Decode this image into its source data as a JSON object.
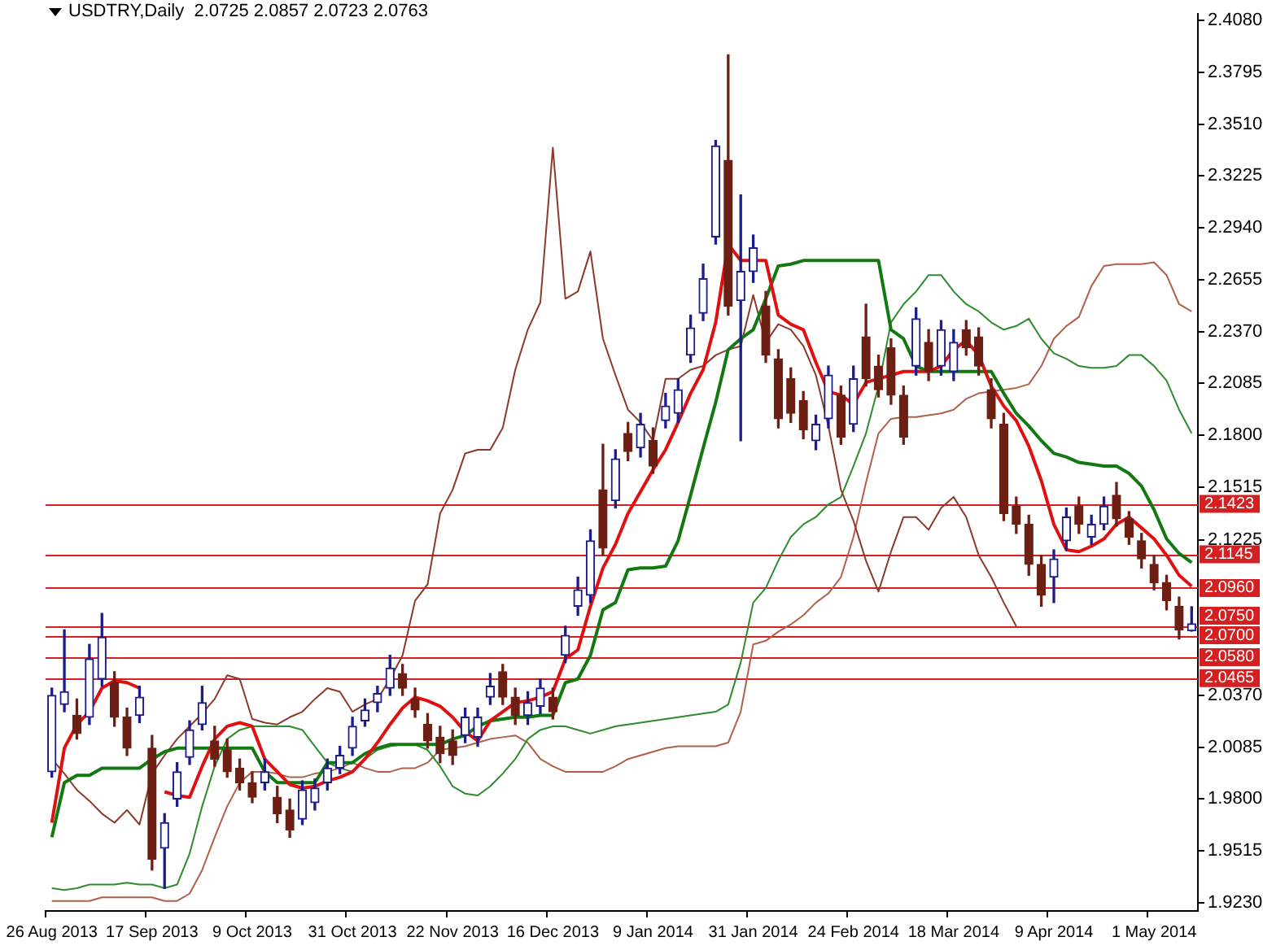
{
  "chart_data": {
    "type": "candlestick",
    "title": "USDTRY,Daily  2.0725 2.0857 2.0723 2.0763",
    "categories": [
      "26 Aug 2013",
      null,
      null,
      null,
      null,
      null,
      null,
      null,
      "17 Sep 2013",
      null,
      null,
      null,
      null,
      null,
      null,
      null,
      "9 Oct 2013",
      null,
      null,
      null,
      null,
      null,
      null,
      null,
      "31 Oct 2013",
      null,
      null,
      null,
      null,
      null,
      null,
      null,
      "22 Nov 2013",
      null,
      null,
      null,
      null,
      null,
      null,
      null,
      "16 Dec 2013",
      null,
      null,
      null,
      null,
      null,
      null,
      null,
      "9 Jan 2014",
      null,
      null,
      null,
      null,
      null,
      null,
      null,
      "31 Jan 2014",
      null,
      null,
      null,
      null,
      null,
      null,
      null,
      "24 Feb 2014",
      null,
      null,
      null,
      null,
      null,
      null,
      null,
      "18 Mar 2014",
      null,
      null,
      null,
      null,
      null,
      null,
      null,
      "9 Apr 2014",
      null,
      null,
      null,
      null,
      null,
      null,
      null,
      "1 May 2014",
      null,
      null,
      null
    ],
    "ohlc": [
      [
        1.995,
        2.041,
        1.992,
        2.037
      ],
      [
        2.032,
        2.073,
        2.028,
        2.039
      ],
      [
        2.026,
        2.035,
        2.013,
        2.016
      ],
      [
        2.025,
        2.065,
        2.021,
        2.057
      ],
      [
        2.046,
        2.082,
        2.042,
        2.069
      ],
      [
        2.044,
        2.05,
        2.02,
        2.025
      ],
      [
        2.025,
        2.03,
        2.004,
        2.008
      ],
      [
        2.026,
        2.042,
        2.022,
        2.036
      ],
      [
        2.008,
        2.015,
        1.941,
        1.947
      ],
      [
        1.953,
        1.972,
        1.931,
        1.967
      ],
      [
        1.98,
        2.0,
        1.976,
        1.995
      ],
      [
        2.003,
        2.023,
        1.999,
        2.018
      ],
      [
        2.021,
        2.042,
        2.018,
        2.033
      ],
      [
        2.012,
        2.02,
        1.998,
        2.002
      ],
      [
        2.007,
        2.013,
        1.992,
        1.995
      ],
      [
        1.997,
        2.002,
        1.985,
        1.989
      ],
      [
        1.989,
        1.995,
        1.978,
        1.981
      ],
      [
        1.989,
        2.002,
        1.985,
        1.995
      ],
      [
        1.981,
        1.987,
        1.967,
        1.972
      ],
      [
        1.974,
        1.98,
        1.959,
        1.963
      ],
      [
        1.969,
        1.99,
        1.966,
        1.985
      ],
      [
        1.978,
        1.991,
        1.974,
        1.986
      ],
      [
        1.989,
        2.002,
        1.985,
        1.997
      ],
      [
        1.997,
        2.009,
        1.994,
        2.004
      ],
      [
        2.008,
        2.025,
        2.004,
        2.02
      ],
      [
        2.023,
        2.035,
        2.02,
        2.029
      ],
      [
        2.033,
        2.042,
        2.028,
        2.038
      ],
      [
        2.041,
        2.059,
        2.037,
        2.052
      ],
      [
        2.049,
        2.054,
        2.037,
        2.041
      ],
      [
        2.035,
        2.041,
        2.025,
        2.029
      ],
      [
        2.021,
        2.027,
        2.008,
        2.012
      ],
      [
        2.014,
        2.02,
        2.0,
        2.005
      ],
      [
        2.012,
        2.018,
        1.999,
        2.004
      ],
      [
        2.015,
        2.03,
        2.011,
        2.025
      ],
      [
        2.014,
        2.03,
        2.009,
        2.025
      ],
      [
        2.036,
        2.049,
        2.032,
        2.042
      ],
      [
        2.05,
        2.054,
        2.032,
        2.036
      ],
      [
        2.036,
        2.041,
        2.021,
        2.026
      ],
      [
        2.026,
        2.039,
        2.021,
        2.033
      ],
      [
        2.031,
        2.046,
        2.027,
        2.041
      ],
      [
        2.036,
        2.041,
        2.024,
        2.028
      ],
      [
        2.059,
        2.075,
        2.055,
        2.07
      ],
      [
        2.086,
        2.102,
        2.081,
        2.095
      ],
      [
        2.092,
        2.128,
        2.088,
        2.122
      ],
      [
        2.15,
        2.175,
        2.114,
        2.118
      ],
      [
        2.144,
        2.172,
        2.14,
        2.167
      ],
      [
        2.181,
        2.187,
        2.166,
        2.171
      ],
      [
        2.173,
        2.192,
        2.168,
        2.186
      ],
      [
        2.177,
        2.184,
        2.159,
        2.163
      ],
      [
        2.188,
        2.203,
        2.184,
        2.196
      ],
      [
        2.192,
        2.211,
        2.187,
        2.205
      ],
      [
        2.224,
        2.246,
        2.22,
        2.239
      ],
      [
        2.247,
        2.274,
        2.243,
        2.266
      ],
      [
        2.289,
        2.342,
        2.285,
        2.339
      ],
      [
        2.331,
        2.389,
        2.246,
        2.251
      ],
      [
        2.254,
        2.312,
        2.177,
        2.27
      ],
      [
        2.27,
        2.29,
        2.264,
        2.283
      ],
      [
        2.251,
        2.259,
        2.22,
        2.224
      ],
      [
        2.222,
        2.227,
        2.184,
        2.189
      ],
      [
        2.211,
        2.217,
        2.187,
        2.192
      ],
      [
        2.199,
        2.204,
        2.178,
        2.183
      ],
      [
        2.177,
        2.191,
        2.172,
        2.186
      ],
      [
        2.189,
        2.218,
        2.184,
        2.213
      ],
      [
        2.202,
        2.207,
        2.175,
        2.179
      ],
      [
        2.186,
        2.218,
        2.182,
        2.211
      ],
      [
        2.234,
        2.252,
        2.207,
        2.211
      ],
      [
        2.218,
        2.224,
        2.201,
        2.205
      ],
      [
        2.228,
        2.233,
        2.197,
        2.202
      ],
      [
        2.202,
        2.207,
        2.175,
        2.179
      ],
      [
        2.218,
        2.25,
        2.213,
        2.244
      ],
      [
        2.231,
        2.238,
        2.21,
        2.215
      ],
      [
        2.218,
        2.243,
        2.213,
        2.238
      ],
      [
        2.215,
        2.238,
        2.21,
        2.231
      ],
      [
        2.238,
        2.243,
        2.224,
        2.228
      ],
      [
        2.234,
        2.239,
        2.213,
        2.218
      ],
      [
        2.205,
        2.211,
        2.184,
        2.189
      ],
      [
        2.186,
        2.192,
        2.133,
        2.137
      ],
      [
        2.141,
        2.146,
        2.126,
        2.131
      ],
      [
        2.131,
        2.136,
        2.103,
        2.109
      ],
      [
        2.109,
        2.114,
        2.086,
        2.092
      ],
      [
        2.102,
        2.117,
        2.088,
        2.112
      ],
      [
        2.122,
        2.14,
        2.117,
        2.135
      ],
      [
        2.141,
        2.146,
        2.126,
        2.131
      ],
      [
        2.124,
        2.136,
        2.12,
        2.131
      ],
      [
        2.131,
        2.146,
        2.128,
        2.141
      ],
      [
        2.147,
        2.154,
        2.13,
        2.134
      ],
      [
        2.134,
        2.138,
        2.12,
        2.124
      ],
      [
        2.122,
        2.126,
        2.107,
        2.112
      ],
      [
        2.109,
        2.114,
        2.095,
        2.099
      ],
      [
        2.099,
        2.103,
        2.084,
        2.089
      ],
      [
        2.086,
        2.091,
        2.068,
        2.073
      ],
      [
        2.0725,
        2.0857,
        2.0723,
        2.0763
      ]
    ],
    "colors": [
      "#1c1c8c",
      "#1c1c8c",
      "#6e1f14",
      "#1c1c8c",
      "#1c1c8c",
      "#6e1f14",
      "#6e1f14",
      "#1c1c8c",
      "#6e1f14",
      "#1c1c8c",
      "#1c1c8c",
      "#1c1c8c",
      "#1c1c8c",
      "#6e1f14",
      "#6e1f14",
      "#6e1f14",
      "#6e1f14",
      "#1c1c8c",
      "#6e1f14",
      "#6e1f14",
      "#1c1c8c",
      "#1c1c8c",
      "#1c1c8c",
      "#1c1c8c",
      "#1c1c8c",
      "#1c1c8c",
      "#1c1c8c",
      "#1c1c8c",
      "#6e1f14",
      "#6e1f14",
      "#6e1f14",
      "#6e1f14",
      "#6e1f14",
      "#1c1c8c",
      "#1c1c8c",
      "#1c1c8c",
      "#6e1f14",
      "#6e1f14",
      "#1c1c8c",
      "#1c1c8c",
      "#6e1f14",
      "#1c1c8c",
      "#1c1c8c",
      "#1c1c8c",
      "#6e1f14",
      "#1c1c8c",
      "#6e1f14",
      "#1c1c8c",
      "#6e1f14",
      "#1c1c8c",
      "#1c1c8c",
      "#1c1c8c",
      "#1c1c8c",
      "#1c1c8c",
      "#6e1f14",
      "#1c1c8c",
      "#1c1c8c",
      "#6e1f14",
      "#6e1f14",
      "#6e1f14",
      "#6e1f14",
      "#1c1c8c",
      "#1c1c8c",
      "#6e1f14",
      "#1c1c8c",
      "#6e1f14",
      "#6e1f14",
      "#6e1f14",
      "#6e1f14",
      "#1c1c8c",
      "#6e1f14",
      "#1c1c8c",
      "#1c1c8c",
      "#6e1f14",
      "#6e1f14",
      "#6e1f14",
      "#6e1f14",
      "#6e1f14",
      "#6e1f14",
      "#6e1f14",
      "#1c1c8c",
      "#1c1c8c",
      "#6e1f14",
      "#1c1c8c",
      "#1c1c8c",
      "#6e1f14",
      "#6e1f14",
      "#6e1f14",
      "#6e1f14",
      "#6e1f14",
      "#6e1f14",
      "#1c1c8c"
    ],
    "series": [
      {
        "type": "line",
        "color": "#e01010",
        "values": [
          1.967,
          2.008,
          2.021,
          2.028,
          2.041,
          2.045,
          2.044,
          2.041,
          null,
          1.984,
          1.982,
          1.981,
          1.998,
          2.013,
          2.02,
          2.022,
          2.02,
          2.002,
          1.995,
          1.988,
          1.986,
          1.987,
          1.99,
          1.992,
          1.995,
          2.002,
          2.011,
          2.021,
          2.03,
          2.036,
          2.034,
          2.031,
          2.025,
          2.017,
          2.012,
          2.023,
          2.028,
          2.033,
          2.034,
          2.036,
          2.039,
          2.057,
          2.062,
          2.086,
          2.107,
          2.12,
          2.137,
          2.149,
          2.161,
          2.172,
          2.187,
          2.203,
          2.216,
          2.242,
          2.285,
          2.276,
          2.276,
          2.276,
          2.246,
          2.241,
          2.238,
          2.22,
          2.204,
          2.202,
          2.197,
          2.209,
          2.211,
          2.213,
          2.215,
          2.215,
          2.215,
          2.218,
          2.227,
          2.232,
          2.224,
          2.207,
          2.196,
          2.188,
          2.174,
          2.155,
          2.131,
          2.117,
          2.116,
          2.119,
          2.123,
          2.131,
          2.135,
          2.129,
          2.123,
          2.114,
          2.103,
          2.097
        ]
      },
      {
        "type": "line",
        "color": "#127812",
        "values": [
          1.959,
          1.989,
          1.993,
          1.993,
          1.997,
          1.997,
          1.997,
          1.997,
          2.002,
          2.006,
          2.008,
          2.008,
          2.008,
          2.008,
          2.008,
          2.008,
          2.008,
          1.995,
          1.989,
          1.989,
          1.989,
          1.989,
          2.0,
          2.0,
          2.0,
          2.005,
          2.008,
          2.01,
          2.01,
          2.01,
          2.01,
          2.01,
          2.013,
          2.015,
          2.02,
          2.023,
          2.024,
          2.025,
          2.025,
          2.026,
          2.026,
          2.044,
          2.046,
          2.059,
          2.084,
          2.088,
          2.106,
          2.107,
          2.107,
          2.108,
          2.122,
          2.147,
          2.173,
          2.198,
          2.227,
          2.233,
          2.238,
          2.255,
          2.273,
          2.274,
          2.276,
          2.276,
          2.276,
          2.276,
          2.276,
          2.276,
          2.276,
          2.238,
          2.233,
          2.218,
          2.215,
          2.215,
          2.215,
          2.215,
          2.215,
          2.215,
          2.203,
          2.192,
          2.185,
          2.177,
          2.17,
          2.168,
          2.165,
          2.164,
          2.163,
          2.163,
          2.159,
          2.152,
          2.139,
          2.123,
          2.115,
          2.11
        ]
      },
      {
        "type": "line",
        "color": "#8b3a2a",
        "values": [
          2.002,
          1.994,
          1.985,
          1.979,
          1.972,
          1.967,
          1.974,
          1.966,
          1.994,
          2.004,
          2.013,
          2.02,
          2.027,
          2.035,
          2.048,
          2.046,
          2.024,
          2.022,
          2.021,
          2.025,
          2.028,
          2.035,
          2.041,
          2.039,
          2.028,
          2.032,
          2.035,
          2.046,
          2.059,
          2.089,
          2.098,
          2.137,
          2.15,
          2.17,
          2.172,
          2.172,
          2.184,
          2.216,
          2.238,
          2.253,
          2.338,
          2.255,
          2.259,
          2.281,
          2.233,
          2.213,
          2.194,
          2.187,
          2.177,
          2.211,
          2.211,
          2.216,
          2.218,
          2.224,
          2.227,
          2.229,
          2.257,
          2.231,
          2.241,
          2.238,
          2.229,
          2.213,
          2.185,
          2.15,
          2.133,
          2.111,
          2.094,
          2.116,
          2.135,
          2.135,
          2.128,
          2.14,
          2.146,
          2.135,
          2.114,
          2.102,
          2.088,
          2.075,
          null,
          null,
          null,
          null,
          null,
          null,
          null,
          null,
          null,
          null,
          null,
          null,
          null,
          null
        ]
      },
      {
        "type": "line",
        "color": "#2e8b2e",
        "values": [
          1.931,
          1.93,
          1.931,
          1.933,
          1.933,
          1.933,
          1.934,
          1.933,
          1.933,
          1.931,
          1.933,
          1.95,
          1.976,
          1.998,
          2.013,
          2.018,
          2.02,
          2.02,
          2.02,
          2.02,
          2.018,
          2.009,
          2.0,
          1.997,
          1.995,
          2.002,
          2.007,
          2.009,
          2.01,
          2.01,
          2.007,
          1.998,
          1.987,
          1.983,
          1.982,
          1.987,
          1.994,
          2.002,
          2.013,
          2.018,
          2.02,
          2.02,
          2.018,
          2.016,
          2.018,
          2.02,
          2.021,
          2.022,
          2.023,
          2.024,
          2.025,
          2.026,
          2.027,
          2.028,
          2.032,
          2.055,
          2.088,
          2.096,
          2.111,
          2.124,
          2.131,
          2.135,
          2.142,
          2.146,
          2.163,
          2.181,
          2.207,
          2.242,
          2.252,
          2.259,
          2.268,
          2.268,
          2.259,
          2.252,
          2.248,
          2.242,
          2.238,
          2.24,
          2.244,
          2.233,
          2.225,
          2.222,
          2.218,
          2.217,
          2.217,
          2.218,
          2.224,
          2.224,
          2.218,
          2.21,
          2.194,
          2.181
        ]
      },
      {
        "type": "line",
        "color": "#b0604a",
        "values": [
          1.924,
          1.924,
          1.924,
          1.924,
          1.926,
          1.926,
          1.926,
          1.926,
          1.926,
          1.924,
          1.924,
          1.928,
          1.941,
          1.959,
          1.976,
          1.989,
          1.995,
          1.995,
          1.994,
          1.992,
          1.992,
          1.994,
          1.995,
          1.997,
          2.0,
          1.997,
          1.995,
          1.995,
          1.997,
          1.997,
          2.0,
          2.007,
          2.008,
          2.009,
          2.011,
          2.013,
          2.014,
          2.015,
          2.011,
          2.002,
          1.998,
          1.995,
          1.995,
          1.995,
          1.995,
          1.998,
          2.002,
          2.004,
          2.006,
          2.008,
          2.009,
          2.009,
          2.009,
          2.009,
          2.011,
          2.028,
          2.065,
          2.067,
          2.072,
          2.076,
          2.081,
          2.088,
          2.093,
          2.102,
          2.124,
          2.154,
          2.181,
          2.189,
          2.19,
          2.19,
          2.191,
          2.192,
          2.194,
          2.2,
          2.203,
          2.204,
          2.205,
          2.206,
          2.208,
          2.218,
          2.233,
          2.24,
          2.245,
          2.262,
          2.273,
          2.274,
          2.274,
          2.274,
          2.275,
          2.268,
          2.252,
          2.248
        ]
      }
    ],
    "ylim": [
      1.9185,
      2.4115
    ],
    "yticks": [
      {
        "value": 2.408,
        "label": "2.4080"
      },
      {
        "value": 2.3795,
        "label": "2.3795"
      },
      {
        "value": 2.351,
        "label": "2.3510"
      },
      {
        "value": 2.3225,
        "label": "2.3225"
      },
      {
        "value": 2.294,
        "label": "2.2940"
      },
      {
        "value": 2.2655,
        "label": "2.2655"
      },
      {
        "value": 2.237,
        "label": "2.2370"
      },
      {
        "value": 2.2085,
        "label": "2.2085"
      },
      {
        "value": 2.18,
        "label": "2.1800"
      },
      {
        "value": 2.1515,
        "label": "2.1515"
      },
      {
        "value": 2.1225,
        "label": "2.1225"
      },
      {
        "value": 2.037,
        "label": "2.0370"
      },
      {
        "value": 2.0085,
        "label": "2.0085"
      },
      {
        "value": 1.98,
        "label": "1.9800"
      },
      {
        "value": 1.9515,
        "label": "1.9515"
      },
      {
        "value": 1.923,
        "label": "1.9230"
      }
    ],
    "ref_lines": [
      {
        "axis": "y",
        "value": 2.1423,
        "label": "2.1423",
        "color": "#d42020"
      },
      {
        "axis": "y",
        "value": 2.1145,
        "label": "2.1145",
        "color": "#d42020"
      },
      {
        "axis": "y",
        "value": 2.096,
        "label": "2.0960",
        "color": "#d42020"
      },
      {
        "axis": "y",
        "value": 2.075,
        "label": "2.0750",
        "color": "#d42020"
      },
      {
        "axis": "y",
        "value": 2.07,
        "label": "2.0700",
        "color": "#d42020"
      },
      {
        "axis": "y",
        "value": 2.058,
        "label": "2.0580",
        "color": "#d42020"
      },
      {
        "axis": "y",
        "value": 2.0465,
        "label": "2.0465",
        "color": "#d42020"
      }
    ],
    "grid": false,
    "legend": false
  }
}
